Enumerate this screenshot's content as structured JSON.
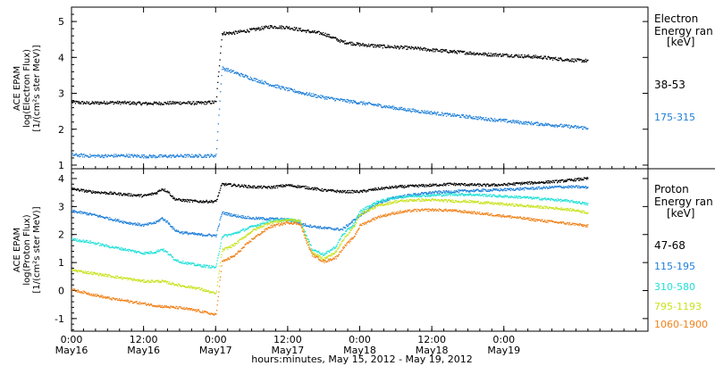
{
  "chart_data": [
    {
      "type": "scatter",
      "panel": "electron",
      "ylabel_lines": [
        "ACE EPAM",
        "log(Electron Flux)",
        "[1/(cm²s ster MeV)]"
      ],
      "ylim": [
        0.9,
        5.4
      ],
      "yticks": [
        1,
        2,
        3,
        4,
        5
      ],
      "legend_title_lines": [
        "Electron",
        "Energy ran",
        "[keV]"
      ],
      "series": [
        {
          "name": "38-53",
          "color": "#000000",
          "points": [
            [
              0,
              2.77
            ],
            [
              3,
              2.74
            ],
            [
              6,
              2.76
            ],
            [
              9,
              2.75
            ],
            [
              12,
              2.73
            ],
            [
              15,
              2.74
            ],
            [
              18,
              2.75
            ],
            [
              21,
              2.74
            ],
            [
              24,
              2.77
            ],
            [
              25,
              4.68
            ],
            [
              27,
              4.7
            ],
            [
              30,
              4.78
            ],
            [
              33,
              4.87
            ],
            [
              36,
              4.85
            ],
            [
              39,
              4.75
            ],
            [
              42,
              4.67
            ],
            [
              45,
              4.45
            ],
            [
              48,
              4.37
            ],
            [
              51,
              4.33
            ],
            [
              54,
              4.3
            ],
            [
              57,
              4.27
            ],
            [
              60,
              4.22
            ],
            [
              63,
              4.18
            ],
            [
              66,
              4.14
            ],
            [
              69,
              4.1
            ],
            [
              72,
              4.08
            ],
            [
              75,
              4.05
            ],
            [
              78,
              4.02
            ],
            [
              81,
              3.97
            ],
            [
              84,
              3.93
            ],
            [
              86,
              3.92
            ]
          ]
        },
        {
          "name": "175-315",
          "color": "#1e7fd8",
          "points": [
            [
              0,
              1.3
            ],
            [
              3,
              1.27
            ],
            [
              6,
              1.27
            ],
            [
              9,
              1.28
            ],
            [
              12,
              1.26
            ],
            [
              15,
              1.26
            ],
            [
              18,
              1.27
            ],
            [
              21,
              1.27
            ],
            [
              24,
              1.28
            ],
            [
              25,
              3.72
            ],
            [
              27,
              3.6
            ],
            [
              30,
              3.42
            ],
            [
              33,
              3.26
            ],
            [
              36,
              3.12
            ],
            [
              39,
              3.0
            ],
            [
              42,
              2.9
            ],
            [
              45,
              2.82
            ],
            [
              48,
              2.75
            ],
            [
              51,
              2.68
            ],
            [
              54,
              2.6
            ],
            [
              57,
              2.53
            ],
            [
              60,
              2.47
            ],
            [
              63,
              2.41
            ],
            [
              66,
              2.36
            ],
            [
              69,
              2.3
            ],
            [
              72,
              2.25
            ],
            [
              75,
              2.2
            ],
            [
              78,
              2.16
            ],
            [
              81,
              2.12
            ],
            [
              84,
              2.07
            ],
            [
              86,
              2.05
            ]
          ]
        }
      ]
    },
    {
      "type": "scatter",
      "panel": "proton",
      "ylabel_lines": [
        "ACE EPAM",
        "log(Proton Flux)",
        "[1/(cm²s ster MeV)]"
      ],
      "ylim": [
        -1.45,
        4.35
      ],
      "yticks": [
        -1,
        0,
        1,
        2,
        3,
        4
      ],
      "legend_title_lines": [
        "Proton",
        "Energy ran",
        "[keV]"
      ],
      "series": [
        {
          "name": "47-68",
          "color": "#000000",
          "points": [
            [
              0,
              3.65
            ],
            [
              3,
              3.55
            ],
            [
              6,
              3.5
            ],
            [
              9,
              3.45
            ],
            [
              12,
              3.4
            ],
            [
              14,
              3.5
            ],
            [
              15,
              3.65
            ],
            [
              16,
              3.55
            ],
            [
              17,
              3.3
            ],
            [
              18,
              3.25
            ],
            [
              21,
              3.2
            ],
            [
              24,
              3.2
            ],
            [
              25,
              3.82
            ],
            [
              27,
              3.78
            ],
            [
              30,
              3.72
            ],
            [
              33,
              3.7
            ],
            [
              36,
              3.78
            ],
            [
              39,
              3.7
            ],
            [
              42,
              3.6
            ],
            [
              45,
              3.55
            ],
            [
              48,
              3.55
            ],
            [
              51,
              3.65
            ],
            [
              54,
              3.72
            ],
            [
              57,
              3.75
            ],
            [
              60,
              3.78
            ],
            [
              63,
              3.82
            ],
            [
              66,
              3.8
            ],
            [
              69,
              3.78
            ],
            [
              72,
              3.8
            ],
            [
              75,
              3.85
            ],
            [
              78,
              3.88
            ],
            [
              81,
              3.92
            ],
            [
              84,
              3.98
            ],
            [
              86,
              4.02
            ]
          ]
        },
        {
          "name": "115-195",
          "color": "#1e7fd8",
          "points": [
            [
              0,
              2.85
            ],
            [
              3,
              2.75
            ],
            [
              6,
              2.6
            ],
            [
              9,
              2.45
            ],
            [
              12,
              2.35
            ],
            [
              14,
              2.45
            ],
            [
              15,
              2.6
            ],
            [
              16,
              2.45
            ],
            [
              17,
              2.2
            ],
            [
              18,
              2.1
            ],
            [
              21,
              2.02
            ],
            [
              24,
              1.98
            ],
            [
              25,
              2.8
            ],
            [
              27,
              2.7
            ],
            [
              30,
              2.6
            ],
            [
              33,
              2.58
            ],
            [
              36,
              2.55
            ],
            [
              39,
              2.35
            ],
            [
              42,
              2.25
            ],
            [
              45,
              2.2
            ],
            [
              48,
              2.7
            ],
            [
              51,
              3.15
            ],
            [
              54,
              3.35
            ],
            [
              57,
              3.45
            ],
            [
              60,
              3.52
            ],
            [
              63,
              3.55
            ],
            [
              66,
              3.58
            ],
            [
              69,
              3.6
            ],
            [
              72,
              3.62
            ],
            [
              75,
              3.65
            ],
            [
              78,
              3.68
            ],
            [
              81,
              3.72
            ],
            [
              84,
              3.72
            ],
            [
              86,
              3.7
            ]
          ]
        },
        {
          "name": "310-580",
          "color": "#22e0d8",
          "points": [
            [
              0,
              1.85
            ],
            [
              3,
              1.75
            ],
            [
              6,
              1.6
            ],
            [
              9,
              1.48
            ],
            [
              12,
              1.35
            ],
            [
              14,
              1.4
            ],
            [
              15,
              1.5
            ],
            [
              16,
              1.35
            ],
            [
              17,
              1.15
            ],
            [
              18,
              1.05
            ],
            [
              21,
              0.92
            ],
            [
              24,
              0.85
            ],
            [
              25,
              1.95
            ],
            [
              27,
              2.05
            ],
            [
              30,
              2.3
            ],
            [
              33,
              2.5
            ],
            [
              36,
              2.55
            ],
            [
              38,
              2.5
            ],
            [
              39,
              2.0
            ],
            [
              40,
              1.5
            ],
            [
              42,
              1.3
            ],
            [
              44,
              1.6
            ],
            [
              45,
              2.0
            ],
            [
              47,
              2.4
            ],
            [
              48,
              2.85
            ],
            [
              51,
              3.2
            ],
            [
              54,
              3.35
            ],
            [
              57,
              3.4
            ],
            [
              60,
              3.42
            ],
            [
              63,
              3.45
            ],
            [
              66,
              3.45
            ],
            [
              69,
              3.42
            ],
            [
              72,
              3.38
            ],
            [
              75,
              3.35
            ],
            [
              78,
              3.3
            ],
            [
              81,
              3.25
            ],
            [
              84,
              3.18
            ],
            [
              86,
              3.1
            ]
          ]
        },
        {
          "name": "795-1193",
          "color": "#c8e21c",
          "points": [
            [
              0,
              0.75
            ],
            [
              3,
              0.65
            ],
            [
              6,
              0.55
            ],
            [
              9,
              0.45
            ],
            [
              12,
              0.35
            ],
            [
              15,
              0.35
            ],
            [
              18,
              0.2
            ],
            [
              21,
              0.1
            ],
            [
              24,
              -0.1
            ],
            [
              25,
              1.45
            ],
            [
              27,
              1.65
            ],
            [
              30,
              2.15
            ],
            [
              33,
              2.45
            ],
            [
              36,
              2.55
            ],
            [
              38,
              2.5
            ],
            [
              39,
              1.9
            ],
            [
              40,
              1.35
            ],
            [
              42,
              1.15
            ],
            [
              44,
              1.4
            ],
            [
              45,
              1.8
            ],
            [
              47,
              2.3
            ],
            [
              48,
              2.75
            ],
            [
              51,
              3.05
            ],
            [
              54,
              3.2
            ],
            [
              57,
              3.25
            ],
            [
              60,
              3.25
            ],
            [
              63,
              3.22
            ],
            [
              66,
              3.2
            ],
            [
              69,
              3.15
            ],
            [
              72,
              3.1
            ],
            [
              75,
              3.05
            ],
            [
              78,
              3.0
            ],
            [
              81,
              2.95
            ],
            [
              84,
              2.88
            ],
            [
              86,
              2.8
            ]
          ]
        },
        {
          "name": "1060-1900",
          "color": "#f0821a",
          "points": [
            [
              0,
              0.05
            ],
            [
              3,
              -0.1
            ],
            [
              6,
              -0.25
            ],
            [
              9,
              -0.35
            ],
            [
              12,
              -0.45
            ],
            [
              15,
              -0.55
            ],
            [
              18,
              -0.6
            ],
            [
              21,
              -0.7
            ],
            [
              24,
              -0.85
            ],
            [
              25,
              1.05
            ],
            [
              27,
              1.25
            ],
            [
              30,
              1.85
            ],
            [
              33,
              2.3
            ],
            [
              36,
              2.45
            ],
            [
              38,
              2.4
            ],
            [
              39,
              1.8
            ],
            [
              40,
              1.3
            ],
            [
              42,
              1.05
            ],
            [
              44,
              1.2
            ],
            [
              45,
              1.5
            ],
            [
              47,
              1.95
            ],
            [
              48,
              2.35
            ],
            [
              51,
              2.65
            ],
            [
              54,
              2.8
            ],
            [
              57,
              2.88
            ],
            [
              60,
              2.9
            ],
            [
              63,
              2.88
            ],
            [
              66,
              2.82
            ],
            [
              69,
              2.75
            ],
            [
              72,
              2.68
            ],
            [
              75,
              2.6
            ],
            [
              78,
              2.52
            ],
            [
              81,
              2.45
            ],
            [
              84,
              2.38
            ],
            [
              86,
              2.32
            ]
          ]
        }
      ]
    }
  ],
  "x_axis": {
    "range_hours": [
      0,
      96
    ],
    "ticks": [
      {
        "hour": 0,
        "line1": "0:00",
        "line2": "May16"
      },
      {
        "hour": 12,
        "line1": "12:00",
        "line2": "May16"
      },
      {
        "hour": 24,
        "line1": "0:00",
        "line2": "May17"
      },
      {
        "hour": 36,
        "line1": "12:00",
        "line2": "May17"
      },
      {
        "hour": 48,
        "line1": "0:00",
        "line2": "May18"
      },
      {
        "hour": 60,
        "line1": "12:00",
        "line2": "May18"
      },
      {
        "hour": 72,
        "line1": "0:00",
        "line2": "May19"
      }
    ],
    "xlabel": "hours:minutes, May 15, 2012 - May 19, 2012"
  }
}
